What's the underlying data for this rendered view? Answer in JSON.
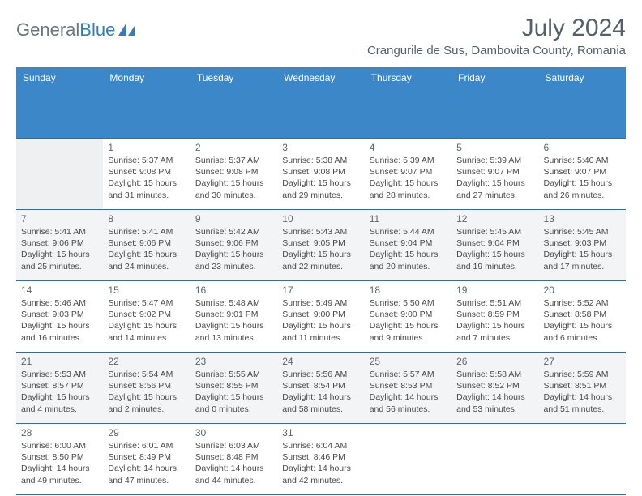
{
  "logo": {
    "part1": "General",
    "part2": "Blue",
    "accent": "#2f7fbf"
  },
  "header": {
    "month_year": "July 2024",
    "location": "Crangurile de Sus, Dambovita County, Romania",
    "title_color": "#55606a"
  },
  "weekdays": [
    "Sunday",
    "Monday",
    "Tuesday",
    "Wednesday",
    "Thursday",
    "Friday",
    "Saturday"
  ],
  "colors": {
    "header_bg": "#3b87c8",
    "header_fg": "#ffffff",
    "grid_line": "#3b6a94",
    "bg": "#ffffff"
  },
  "weeks": [
    [
      null,
      {
        "d": "1",
        "sr": "Sunrise: 5:37 AM",
        "ss": "Sunset: 9:08 PM",
        "dl": "Daylight: 15 hours and 31 minutes."
      },
      {
        "d": "2",
        "sr": "Sunrise: 5:37 AM",
        "ss": "Sunset: 9:08 PM",
        "dl": "Daylight: 15 hours and 30 minutes."
      },
      {
        "d": "3",
        "sr": "Sunrise: 5:38 AM",
        "ss": "Sunset: 9:08 PM",
        "dl": "Daylight: 15 hours and 29 minutes."
      },
      {
        "d": "4",
        "sr": "Sunrise: 5:39 AM",
        "ss": "Sunset: 9:07 PM",
        "dl": "Daylight: 15 hours and 28 minutes."
      },
      {
        "d": "5",
        "sr": "Sunrise: 5:39 AM",
        "ss": "Sunset: 9:07 PM",
        "dl": "Daylight: 15 hours and 27 minutes."
      },
      {
        "d": "6",
        "sr": "Sunrise: 5:40 AM",
        "ss": "Sunset: 9:07 PM",
        "dl": "Daylight: 15 hours and 26 minutes."
      }
    ],
    [
      {
        "d": "7",
        "sr": "Sunrise: 5:41 AM",
        "ss": "Sunset: 9:06 PM",
        "dl": "Daylight: 15 hours and 25 minutes."
      },
      {
        "d": "8",
        "sr": "Sunrise: 5:41 AM",
        "ss": "Sunset: 9:06 PM",
        "dl": "Daylight: 15 hours and 24 minutes."
      },
      {
        "d": "9",
        "sr": "Sunrise: 5:42 AM",
        "ss": "Sunset: 9:06 PM",
        "dl": "Daylight: 15 hours and 23 minutes."
      },
      {
        "d": "10",
        "sr": "Sunrise: 5:43 AM",
        "ss": "Sunset: 9:05 PM",
        "dl": "Daylight: 15 hours and 22 minutes."
      },
      {
        "d": "11",
        "sr": "Sunrise: 5:44 AM",
        "ss": "Sunset: 9:04 PM",
        "dl": "Daylight: 15 hours and 20 minutes."
      },
      {
        "d": "12",
        "sr": "Sunrise: 5:45 AM",
        "ss": "Sunset: 9:04 PM",
        "dl": "Daylight: 15 hours and 19 minutes."
      },
      {
        "d": "13",
        "sr": "Sunrise: 5:45 AM",
        "ss": "Sunset: 9:03 PM",
        "dl": "Daylight: 15 hours and 17 minutes."
      }
    ],
    [
      {
        "d": "14",
        "sr": "Sunrise: 5:46 AM",
        "ss": "Sunset: 9:03 PM",
        "dl": "Daylight: 15 hours and 16 minutes."
      },
      {
        "d": "15",
        "sr": "Sunrise: 5:47 AM",
        "ss": "Sunset: 9:02 PM",
        "dl": "Daylight: 15 hours and 14 minutes."
      },
      {
        "d": "16",
        "sr": "Sunrise: 5:48 AM",
        "ss": "Sunset: 9:01 PM",
        "dl": "Daylight: 15 hours and 13 minutes."
      },
      {
        "d": "17",
        "sr": "Sunrise: 5:49 AM",
        "ss": "Sunset: 9:00 PM",
        "dl": "Daylight: 15 hours and 11 minutes."
      },
      {
        "d": "18",
        "sr": "Sunrise: 5:50 AM",
        "ss": "Sunset: 9:00 PM",
        "dl": "Daylight: 15 hours and 9 minutes."
      },
      {
        "d": "19",
        "sr": "Sunrise: 5:51 AM",
        "ss": "Sunset: 8:59 PM",
        "dl": "Daylight: 15 hours and 7 minutes."
      },
      {
        "d": "20",
        "sr": "Sunrise: 5:52 AM",
        "ss": "Sunset: 8:58 PM",
        "dl": "Daylight: 15 hours and 6 minutes."
      }
    ],
    [
      {
        "d": "21",
        "sr": "Sunrise: 5:53 AM",
        "ss": "Sunset: 8:57 PM",
        "dl": "Daylight: 15 hours and 4 minutes."
      },
      {
        "d": "22",
        "sr": "Sunrise: 5:54 AM",
        "ss": "Sunset: 8:56 PM",
        "dl": "Daylight: 15 hours and 2 minutes."
      },
      {
        "d": "23",
        "sr": "Sunrise: 5:55 AM",
        "ss": "Sunset: 8:55 PM",
        "dl": "Daylight: 15 hours and 0 minutes."
      },
      {
        "d": "24",
        "sr": "Sunrise: 5:56 AM",
        "ss": "Sunset: 8:54 PM",
        "dl": "Daylight: 14 hours and 58 minutes."
      },
      {
        "d": "25",
        "sr": "Sunrise: 5:57 AM",
        "ss": "Sunset: 8:53 PM",
        "dl": "Daylight: 14 hours and 56 minutes."
      },
      {
        "d": "26",
        "sr": "Sunrise: 5:58 AM",
        "ss": "Sunset: 8:52 PM",
        "dl": "Daylight: 14 hours and 53 minutes."
      },
      {
        "d": "27",
        "sr": "Sunrise: 5:59 AM",
        "ss": "Sunset: 8:51 PM",
        "dl": "Daylight: 14 hours and 51 minutes."
      }
    ],
    [
      {
        "d": "28",
        "sr": "Sunrise: 6:00 AM",
        "ss": "Sunset: 8:50 PM",
        "dl": "Daylight: 14 hours and 49 minutes."
      },
      {
        "d": "29",
        "sr": "Sunrise: 6:01 AM",
        "ss": "Sunset: 8:49 PM",
        "dl": "Daylight: 14 hours and 47 minutes."
      },
      {
        "d": "30",
        "sr": "Sunrise: 6:03 AM",
        "ss": "Sunset: 8:48 PM",
        "dl": "Daylight: 14 hours and 44 minutes."
      },
      {
        "d": "31",
        "sr": "Sunrise: 6:04 AM",
        "ss": "Sunset: 8:46 PM",
        "dl": "Daylight: 14 hours and 42 minutes."
      },
      null,
      null,
      null
    ]
  ]
}
